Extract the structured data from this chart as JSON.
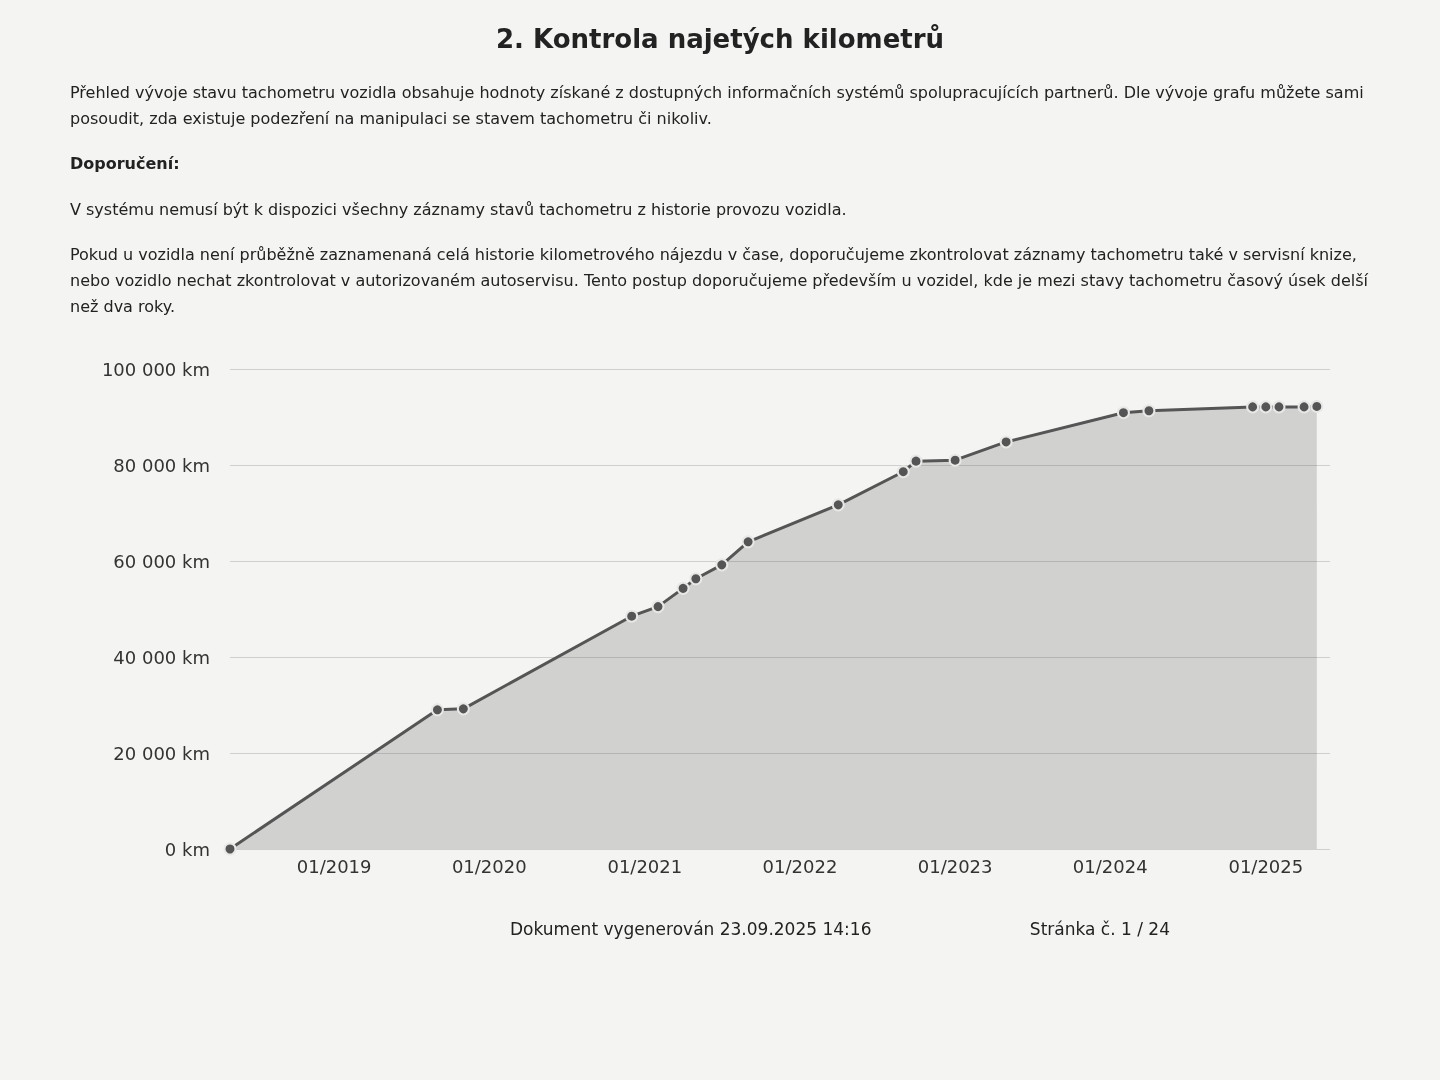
{
  "chart_data": {
    "type": "area",
    "title": "2. Kontrola najetých kilometrů",
    "subtitle": "Přehled vývoje stavu tachometru vozidla obsahuje hodnoty získané z dostupných informačních systémů spolupracujících partnerů. Dle vývoje grafu můžete sami posoudit, zda existuje podezření na manipulaci se stavem tachometru či nikoliv.",
    "annotations": [
      "Doporučení:",
      "V systému nemusí být k dispozici všechny záznamy stavů tachometru z historie provozu vozidla.",
      "Pokud u vozidla není průběžně zaznamenaná celá historie kilometrového nájezdu v čase, doporučujeme zkontrolovat záznamy tachometru také v servisní knize, nebo vozidlo nechat zkontrolovat v autorizovaném autoservisu. Tento postup doporučujeme především u vozidel, kde je mezi stavy tachometru časový úsek delší než dva roky.",
      "Dokument vygenerován 23.09.2025 14:16",
      "Stránka č. 1 / 24"
    ],
    "x": [
      "2018-05",
      "2019-09",
      "2019-11",
      "2020-12",
      "2021-02",
      "2021-04",
      "2021-05",
      "2021-07",
      "2021-09",
      "2022-04",
      "2022-09",
      "2022-10",
      "2023-01",
      "2023-05",
      "2024-02",
      "2024-04",
      "2024-12",
      "2025-01",
      "2025-02",
      "2025-04",
      "2025-05"
    ],
    "series": [
      {
        "color": "#555555",
        "values": [
          0,
          29000,
          29200,
          48500,
          50500,
          54300,
          56300,
          59200,
          64000,
          71700,
          78600,
          80800,
          81000,
          84800,
          90900,
          91300,
          92100,
          92100,
          92100,
          92100,
          92200
        ]
      }
    ],
    "xlim": [
      "2018-05",
      "2025-06"
    ],
    "xticks": [
      {
        "value": "2019-01",
        "label": "01/2019"
      },
      {
        "value": "2020-01",
        "label": "01/2020"
      },
      {
        "value": "2021-01",
        "label": "01/2021"
      },
      {
        "value": "2022-01",
        "label": "01/2022"
      },
      {
        "value": "2023-01",
        "label": "01/2023"
      },
      {
        "value": "2024-01",
        "label": "01/2024"
      },
      {
        "value": "2025-01",
        "label": "01/2025"
      }
    ],
    "ylim": [
      0,
      100000
    ],
    "yticks": [
      {
        "value": 0,
        "label": "0 km"
      },
      {
        "value": 20000,
        "label": "20 000 km"
      },
      {
        "value": 40000,
        "label": "40 000 km"
      },
      {
        "value": 60000,
        "label": "60 000 km"
      },
      {
        "value": 80000,
        "label": "80 000 km"
      },
      {
        "value": 100000,
        "label": "100 000 km"
      }
    ],
    "grid": "y",
    "marker": "circle",
    "line_style": "solid"
  }
}
